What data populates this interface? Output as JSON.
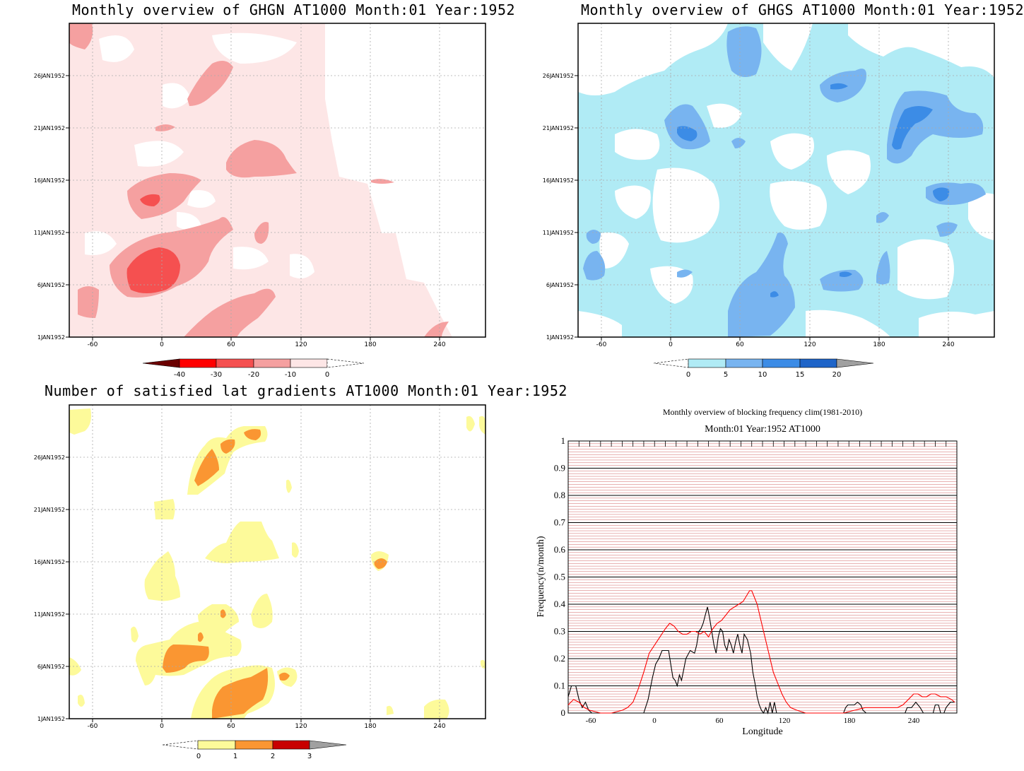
{
  "panels": {
    "ghgn": {
      "title": "Monthly overview of GHGN AT1000 Month:01 Year:1952",
      "x_ticks": [
        "-60",
        "0",
        "60",
        "120",
        "180",
        "240"
      ],
      "y_ticks": [
        "1JAN1952",
        "6JAN1952",
        "11JAN1952",
        "16JAN1952",
        "21JAN1952",
        "26JAN1952"
      ],
      "colorbar": {
        "labels": [
          "-40",
          "-30",
          "-20",
          "-10",
          "0"
        ],
        "colors": [
          "#6b0000",
          "#ff0000",
          "#f55050",
          "#f5a0a0",
          "#fde6e6"
        ]
      }
    },
    "ghgs": {
      "title": "Monthly overview of GHGS AT1000 Month:01 Year:1952",
      "x_ticks": [
        "-60",
        "0",
        "60",
        "120",
        "180",
        "240"
      ],
      "y_ticks": [
        "1JAN1952",
        "6JAN1952",
        "11JAN1952",
        "16JAN1952",
        "21JAN1952",
        "26JAN1952"
      ],
      "colorbar": {
        "labels": [
          "0",
          "5",
          "10",
          "15",
          "20"
        ],
        "colors": [
          "#b0ebf5",
          "#78b4f0",
          "#3c8ce6",
          "#1e64c8",
          "#a0a0a0"
        ]
      }
    },
    "lat_gradients": {
      "title": "Number of satisfied lat gradients AT1000 Month:01 Year:1952",
      "x_ticks": [
        "-60",
        "0",
        "60",
        "120",
        "180",
        "240"
      ],
      "y_ticks": [
        "1JAN1952",
        "6JAN1952",
        "11JAN1952",
        "16JAN1952",
        "21JAN1952",
        "26JAN1952"
      ],
      "colorbar": {
        "labels": [
          "0",
          "1",
          "2",
          "3"
        ],
        "colors": [
          "#fdfa9a",
          "#fa9632",
          "#c80000",
          "#a0a0a0"
        ]
      }
    },
    "blocking": {
      "title": "Monthly overview of blocking frequency clim(1981-2010)",
      "subtitle": "Month:01 Year:1952  AT1000"
    }
  },
  "chart_data": [
    {
      "type": "heatmap",
      "title": "Monthly overview of GHGN AT1000 Month:01 Year:1952",
      "x_ticks": [
        -60,
        0,
        60,
        120,
        180,
        240
      ],
      "y_ticks": [
        "1JAN1952",
        "6JAN1952",
        "11JAN1952",
        "16JAN1952",
        "21JAN1952",
        "26JAN1952"
      ],
      "levels": [
        -40,
        -30,
        -20,
        -10,
        0
      ]
    },
    {
      "type": "heatmap",
      "title": "Monthly overview of GHGS AT1000 Month:01 Year:1952",
      "x_ticks": [
        -60,
        0,
        60,
        120,
        180,
        240
      ],
      "y_ticks": [
        "1JAN1952",
        "6JAN1952",
        "11JAN1952",
        "16JAN1952",
        "21JAN1952",
        "26JAN1952"
      ],
      "levels": [
        0,
        5,
        10,
        15,
        20
      ]
    },
    {
      "type": "heatmap",
      "title": "Number of satisfied lat gradients AT1000 Month:01 Year:1952",
      "x_ticks": [
        -60,
        0,
        60,
        120,
        180,
        240
      ],
      "y_ticks": [
        "1JAN1952",
        "6JAN1952",
        "11JAN1952",
        "16JAN1952",
        "21JAN1952",
        "26JAN1952"
      ],
      "levels": [
        0,
        1,
        2,
        3
      ]
    },
    {
      "type": "line",
      "title": "Monthly overview of blocking frequency clim(1981-2010)",
      "subtitle": "Month:01 Year:1952  AT1000",
      "xlabel": "Longitude",
      "ylabel": "Frequency(n/month)",
      "xlim": [
        -80,
        280
      ],
      "ylim": [
        0,
        1
      ],
      "x_ticks": [
        -60,
        0,
        60,
        120,
        180,
        240
      ],
      "y_ticks": [
        0,
        0.1,
        0.2,
        0.3,
        0.4,
        0.5,
        0.6,
        0.7,
        0.8,
        0.9,
        1
      ],
      "series": [
        {
          "color": "#000000",
          "points": [
            [
              -80,
              0.06
            ],
            [
              -77,
              0.1
            ],
            [
              -73,
              0.1
            ],
            [
              -70,
              0.05
            ],
            [
              -67,
              0.02
            ],
            [
              -64,
              0.04
            ],
            [
              -61,
              0.01
            ],
            [
              -58,
              0.0
            ],
            [
              -10,
              0.0
            ],
            [
              -6,
              0.05
            ],
            [
              -2,
              0.13
            ],
            [
              1,
              0.18
            ],
            [
              4,
              0.2
            ],
            [
              7,
              0.23
            ],
            [
              13,
              0.23
            ],
            [
              15,
              0.18
            ],
            [
              17,
              0.13
            ],
            [
              19,
              0.12
            ],
            [
              21,
              0.1
            ],
            [
              23,
              0.14
            ],
            [
              25,
              0.12
            ],
            [
              27,
              0.16
            ],
            [
              29,
              0.2
            ],
            [
              33,
              0.23
            ],
            [
              37,
              0.22
            ],
            [
              39,
              0.25
            ],
            [
              41,
              0.3
            ],
            [
              43,
              0.31
            ],
            [
              45,
              0.33
            ],
            [
              47,
              0.36
            ],
            [
              49,
              0.39
            ],
            [
              51,
              0.35
            ],
            [
              53,
              0.3
            ],
            [
              55,
              0.25
            ],
            [
              57,
              0.22
            ],
            [
              59,
              0.28
            ],
            [
              61,
              0.31
            ],
            [
              63,
              0.3
            ],
            [
              65,
              0.25
            ],
            [
              67,
              0.23
            ],
            [
              69,
              0.27
            ],
            [
              71,
              0.25
            ],
            [
              73,
              0.22
            ],
            [
              75,
              0.26
            ],
            [
              77,
              0.29
            ],
            [
              79,
              0.25
            ],
            [
              81,
              0.22
            ],
            [
              83,
              0.29
            ],
            [
              86,
              0.27
            ],
            [
              89,
              0.22
            ],
            [
              91,
              0.15
            ],
            [
              93,
              0.11
            ],
            [
              95,
              0.06
            ],
            [
              97,
              0.03
            ],
            [
              99,
              0.01
            ],
            [
              101,
              0.0
            ],
            [
              103,
              0.02
            ],
            [
              105,
              0.0
            ],
            [
              107,
              0.04
            ],
            [
              109,
              0.0
            ],
            [
              111,
              0.04
            ],
            [
              113,
              0.0
            ],
            [
              175,
              0.0
            ],
            [
              177,
              0.02
            ],
            [
              179,
              0.03
            ],
            [
              185,
              0.03
            ],
            [
              188,
              0.04
            ],
            [
              191,
              0.03
            ],
            [
              193,
              0.01
            ],
            [
              196,
              0.0
            ],
            [
              232,
              0.0
            ],
            [
              234,
              0.02
            ],
            [
              238,
              0.02
            ],
            [
              242,
              0.04
            ],
            [
              246,
              0.02
            ],
            [
              249,
              0.0
            ],
            [
              258,
              0.0
            ],
            [
              260,
              0.03
            ],
            [
              263,
              0.03
            ],
            [
              265,
              0.0
            ],
            [
              268,
              0.0
            ],
            [
              270,
              0.02
            ],
            [
              274,
              0.04
            ],
            [
              278,
              0.04
            ]
          ]
        },
        {
          "color": "#ff0000",
          "points": [
            [
              -80,
              0.03
            ],
            [
              -75,
              0.05
            ],
            [
              -70,
              0.04
            ],
            [
              -65,
              0.02
            ],
            [
              -60,
              0.01
            ],
            [
              -50,
              0.0
            ],
            [
              -40,
              0.0
            ],
            [
              -30,
              0.01
            ],
            [
              -25,
              0.02
            ],
            [
              -20,
              0.04
            ],
            [
              -15,
              0.09
            ],
            [
              -10,
              0.15
            ],
            [
              -5,
              0.22
            ],
            [
              0,
              0.25
            ],
            [
              5,
              0.28
            ],
            [
              10,
              0.31
            ],
            [
              14,
              0.33
            ],
            [
              18,
              0.32
            ],
            [
              22,
              0.3
            ],
            [
              26,
              0.29
            ],
            [
              30,
              0.29
            ],
            [
              34,
              0.3
            ],
            [
              38,
              0.3
            ],
            [
              42,
              0.29
            ],
            [
              46,
              0.3
            ],
            [
              50,
              0.28
            ],
            [
              54,
              0.31
            ],
            [
              58,
              0.33
            ],
            [
              62,
              0.34
            ],
            [
              66,
              0.36
            ],
            [
              70,
              0.38
            ],
            [
              74,
              0.39
            ],
            [
              78,
              0.4
            ],
            [
              82,
              0.41
            ],
            [
              85,
              0.43
            ],
            [
              88,
              0.45
            ],
            [
              90,
              0.45
            ],
            [
              92,
              0.43
            ],
            [
              95,
              0.4
            ],
            [
              98,
              0.35
            ],
            [
              101,
              0.3
            ],
            [
              104,
              0.25
            ],
            [
              107,
              0.2
            ],
            [
              110,
              0.15
            ],
            [
              114,
              0.11
            ],
            [
              118,
              0.07
            ],
            [
              122,
              0.04
            ],
            [
              126,
              0.02
            ],
            [
              132,
              0.01
            ],
            [
              140,
              0.0
            ],
            [
              175,
              0.0
            ],
            [
              185,
              0.01
            ],
            [
              195,
              0.02
            ],
            [
              205,
              0.02
            ],
            [
              215,
              0.02
            ],
            [
              225,
              0.02
            ],
            [
              230,
              0.03
            ],
            [
              235,
              0.05
            ],
            [
              240,
              0.07
            ],
            [
              244,
              0.07
            ],
            [
              248,
              0.06
            ],
            [
              252,
              0.06
            ],
            [
              256,
              0.07
            ],
            [
              260,
              0.07
            ],
            [
              265,
              0.06
            ],
            [
              270,
              0.06
            ],
            [
              275,
              0.05
            ],
            [
              278,
              0.04
            ]
          ]
        }
      ]
    }
  ]
}
